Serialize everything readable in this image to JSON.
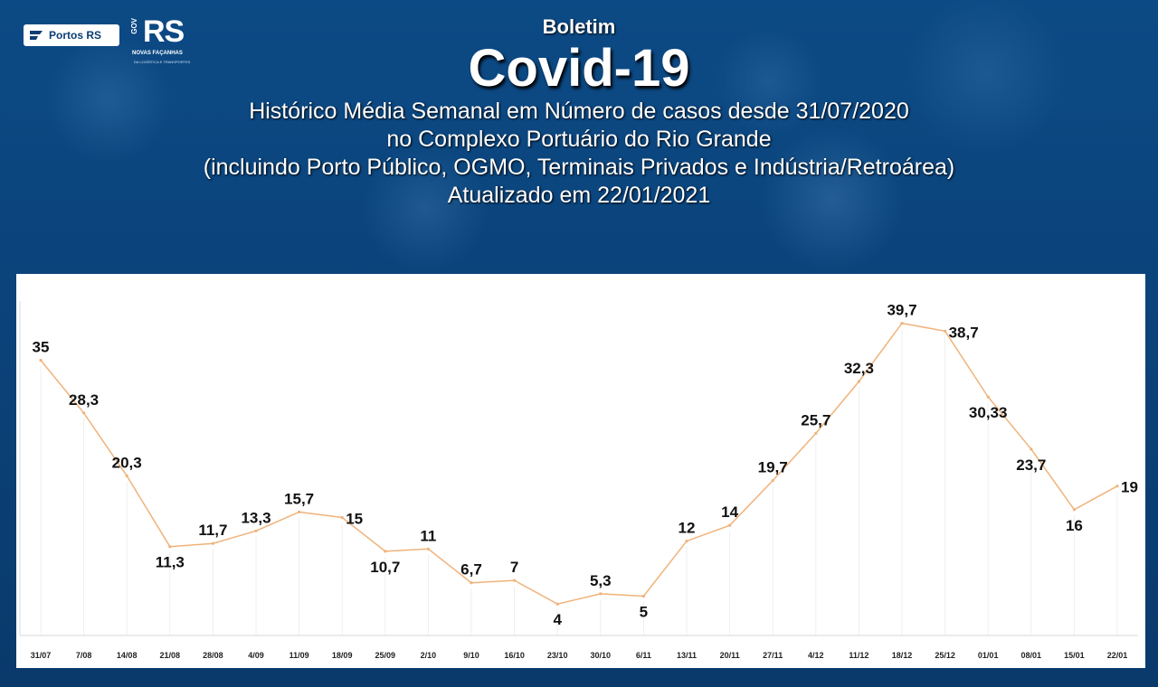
{
  "header": {
    "subtitle": "Boletim",
    "title": "Covid-19",
    "description_lines": [
      "Histórico Média Semanal em Número de casos desde 31/07/2020",
      "no Complexo Portuário do Rio Grande",
      "(incluindo Porto Público, OGMO, Terminais Privados e Indústria/Retroárea)",
      "Atualizado em 22/01/2021"
    ]
  },
  "logos": {
    "portos": "Portos RS",
    "rs_text": "RS",
    "rs_gov": "GOV",
    "rs_tagline": "NOVAS FAÇANHAS",
    "rs_small": "DA LOGÍSTICA E TRANSPORTES"
  },
  "colors": {
    "background": "#0b3e72",
    "line": "#f0b27a",
    "panel": "#ffffff"
  },
  "chart_data": {
    "type": "line",
    "title": "",
    "xlabel": "",
    "ylabel": "",
    "ylim": [
      0,
      45
    ],
    "grid": "vertical",
    "categories": [
      "31/07",
      "7/08",
      "14/08",
      "21/08",
      "28/08",
      "4/09",
      "11/09",
      "18/09",
      "25/09",
      "2/10",
      "9/10",
      "16/10",
      "23/10",
      "30/10",
      "6/11",
      "13/11",
      "20/11",
      "27/11",
      "4/12",
      "11/12",
      "18/12",
      "25/12",
      "01/01",
      "08/01",
      "15/01",
      "22/01"
    ],
    "values": [
      35,
      28.3,
      20.3,
      11.3,
      11.7,
      13.3,
      15.7,
      15,
      10.7,
      11,
      6.7,
      7,
      4,
      5.3,
      5,
      12,
      14,
      19.7,
      25.7,
      32.3,
      39.7,
      38.7,
      30.33,
      23.7,
      16,
      19
    ],
    "labels": [
      "35",
      "28,3",
      "20,3",
      "11,3",
      "11,7",
      "13,3",
      "15,7",
      "15",
      "10,7",
      "11",
      "6,7",
      "7",
      "4",
      "5,3",
      "5",
      "12",
      "14",
      "19,7",
      "25,7",
      "32,3",
      "39,7",
      "38,7",
      "30,33",
      "23,7",
      "16",
      "19"
    ],
    "label_pos": [
      "above",
      "above",
      "above",
      "below",
      "above",
      "above",
      "above",
      "right",
      "below",
      "above",
      "above",
      "above",
      "below",
      "above",
      "below",
      "above",
      "above",
      "above",
      "above",
      "above",
      "above",
      "right",
      "below",
      "below",
      "below",
      "right"
    ]
  }
}
